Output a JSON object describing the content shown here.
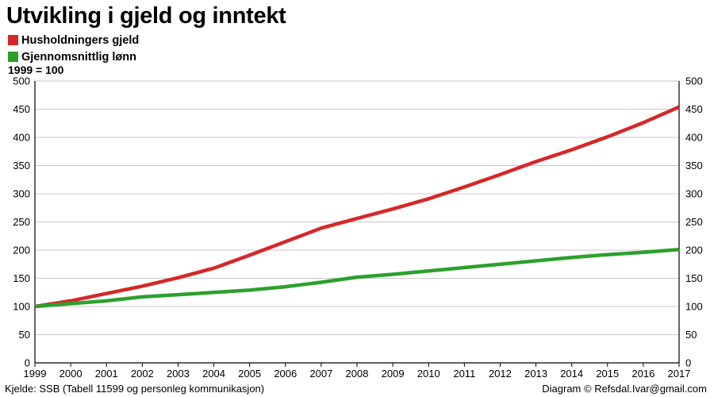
{
  "chart_data": {
    "type": "line",
    "title": "Utvikling i gjeld og inntekt",
    "subtitle": "1999 = 100",
    "x": [
      1999,
      2000,
      2001,
      2002,
      2003,
      2004,
      2005,
      2006,
      2007,
      2008,
      2009,
      2010,
      2011,
      2012,
      2013,
      2014,
      2015,
      2016,
      2017
    ],
    "series": [
      {
        "name": "Husholdningers gjeld",
        "color": "#d62728",
        "values": [
          100,
          110,
          123,
          136,
          151,
          168,
          191,
          215,
          239,
          256,
          273,
          291,
          312,
          334,
          357,
          378,
          401,
          426,
          454
        ]
      },
      {
        "name": "Gjennomsnittlig lønn",
        "color": "#2ca02c",
        "values": [
          100,
          105,
          110,
          117,
          121,
          125,
          129,
          135,
          143,
          152,
          157,
          163,
          169,
          175,
          181,
          187,
          192,
          196,
          201
        ]
      }
    ],
    "ylim": [
      0,
      500
    ],
    "yticks": [
      0,
      50,
      100,
      150,
      200,
      250,
      300,
      350,
      400,
      450,
      500
    ],
    "grid": true,
    "legend": "top-left"
  },
  "footer": {
    "source": "Kjelde: SSB (Tabell 11599 og personleg kommunikasjon)",
    "credit": "Diagram © Refsdal.Ivar@gmail.com"
  }
}
